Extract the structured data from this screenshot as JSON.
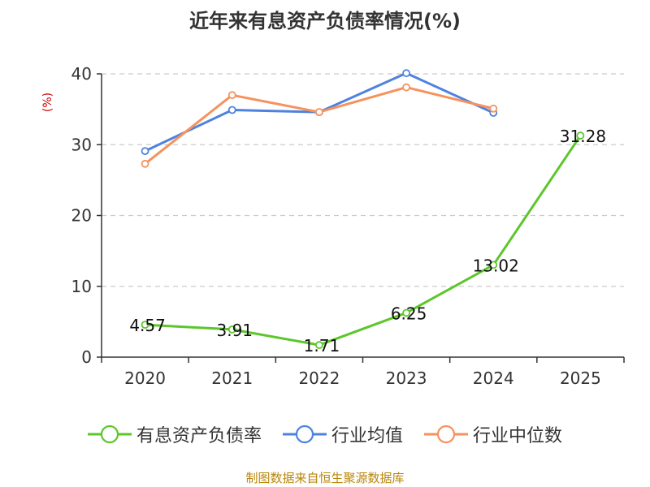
{
  "chart_data": {
    "type": "line",
    "title": "近年来有息资产负债率情况(%)",
    "ylabel": "(%)",
    "xlabel": "",
    "categories": [
      "2020",
      "2021",
      "2022",
      "2023",
      "2024",
      "2025"
    ],
    "yticks": [
      0,
      10,
      20,
      30,
      40
    ],
    "ylim": [
      0,
      40
    ],
    "grid": true,
    "legend_position": "bottom",
    "series": [
      {
        "name": "有息资产负债率",
        "color": "#5cc72b",
        "values": [
          4.57,
          3.91,
          1.71,
          6.25,
          13.02,
          31.28
        ],
        "labels": [
          "4.57",
          "3.91",
          "1.71",
          "6.25",
          "13.02",
          "31.28"
        ],
        "show_labels": true
      },
      {
        "name": "行业均值",
        "color": "#4e82e0",
        "values": [
          29.1,
          34.9,
          34.6,
          40.1,
          34.5,
          null
        ],
        "show_labels": false
      },
      {
        "name": "行业中位数",
        "color": "#f5925e",
        "values": [
          27.3,
          37.0,
          34.6,
          38.1,
          35.1,
          null
        ],
        "show_labels": false
      }
    ]
  },
  "source": {
    "text": "制图数据来自恒生聚源数据库",
    "color": "#b8860b"
  }
}
